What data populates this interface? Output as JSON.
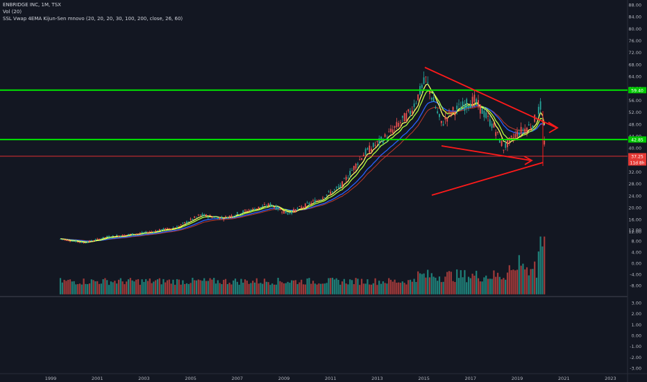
{
  "header": {
    "symbol_line": "ENBRIDGE INC, 1M, TSX",
    "volume_line": "Vol (20)",
    "indicator_line": "SSL Vwap 4EMA Kijun-Sen mnovo (20, 20, 20, 30, 100, 200, close, 26, 60)"
  },
  "colors": {
    "background": "#131722",
    "axis_text": "#b2b5be",
    "up": "#26a69a",
    "down": "#ef5350",
    "support_line": "#00e600",
    "annotation": "#ff1a1a",
    "ema_yellow": "#ffff66",
    "ema_green": "#b4ff3c",
    "ema_blue": "#2962ff",
    "ema_red": "#c0392b"
  },
  "chart_data": [
    {
      "type": "candlestick",
      "panel": "price",
      "title": "ENBRIDGE INC, 1M, TSX",
      "x_ticks": [
        "1999",
        "2001",
        "2003",
        "2005",
        "2007",
        "2009",
        "2011",
        "2013",
        "2015",
        "2017",
        "2019",
        "2021",
        "2023"
      ],
      "y_ticks": [
        "88.00",
        "84.00",
        "80.00",
        "76.00",
        "72.00",
        "68.00",
        "64.00",
        "60.00",
        "56.00",
        "52.00",
        "48.00",
        "44.00",
        "40.00",
        "36.00",
        "32.00",
        "28.00",
        "24.00",
        "20.00",
        "16.00",
        "12.00"
      ],
      "ylim": [
        12,
        90
      ],
      "anchors": [
        {
          "date": "1999-06",
          "price": 9.5
        },
        {
          "date": "2000-06",
          "price": 8.2
        },
        {
          "date": "2001-06",
          "price": 10.2
        },
        {
          "date": "2003-01",
          "price": 11.5
        },
        {
          "date": "2004-06",
          "price": 13.5
        },
        {
          "date": "2005-06",
          "price": 17.5
        },
        {
          "date": "2006-06",
          "price": 16.5
        },
        {
          "date": "2007-06",
          "price": 19.0
        },
        {
          "date": "2008-06",
          "price": 21.0
        },
        {
          "date": "2009-03",
          "price": 18.0
        },
        {
          "date": "2010-06",
          "price": 22.5
        },
        {
          "date": "2011-06",
          "price": 27.0
        },
        {
          "date": "2012-06",
          "price": 38.0
        },
        {
          "date": "2013-06",
          "price": 44.0
        },
        {
          "date": "2014-06",
          "price": 52.0
        },
        {
          "date": "2015-02",
          "price": 63.0
        },
        {
          "date": "2015-10",
          "price": 48.0
        },
        {
          "date": "2016-03",
          "price": 52.0
        },
        {
          "date": "2017-03",
          "price": 56.0
        },
        {
          "date": "2018-01",
          "price": 47.0
        },
        {
          "date": "2018-06",
          "price": 40.0
        },
        {
          "date": "2019-01",
          "price": 45.0
        },
        {
          "date": "2019-09",
          "price": 48.0
        },
        {
          "date": "2020-01",
          "price": 54.0
        },
        {
          "date": "2020-03",
          "price": 42.0
        }
      ],
      "horizontal_levels": [
        {
          "price": 59.4,
          "label": "59.40",
          "color": "#00e600"
        },
        {
          "price": 42.85,
          "label": "42.85",
          "color": "#00e600"
        },
        {
          "price": 37.25,
          "label": "37.25",
          "color": "#ff3333"
        }
      ],
      "last_bar_countdown": "11d 8h"
    },
    {
      "type": "bar",
      "panel": "volume",
      "title": "Vol (20)",
      "y_ticks": [
        "12.00",
        "8.00",
        "4.00",
        "0.00",
        "-4.00",
        "-8.00"
      ]
    },
    {
      "type": "line",
      "panel": "oscillator",
      "y_ticks": [
        "3.00",
        "2.00",
        "1.00",
        "0.00",
        "-1.00",
        "-2.00",
        "-3.00"
      ]
    }
  ]
}
